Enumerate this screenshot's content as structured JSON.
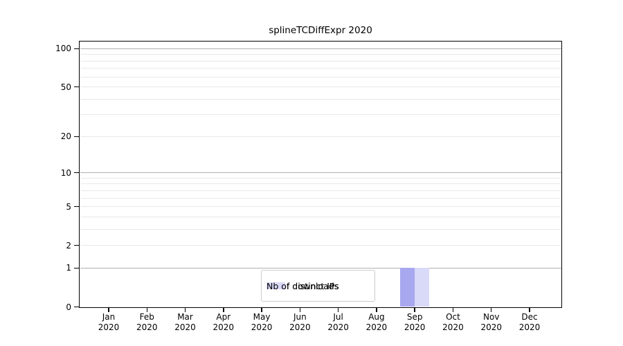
{
  "title": "splineTCDiffExpr 2020",
  "colors": {
    "background": "#ffffff",
    "spine": "#000000",
    "major_grid": "#b0b0b0",
    "minor_grid": "#e8e8e8",
    "text": "#000000",
    "legend_border": "#cccccc"
  },
  "legend": {
    "items": [
      "Nb of distinct IPs",
      "Nb of downloads"
    ]
  },
  "chart_data": {
    "type": "bar",
    "title": "splineTCDiffExpr 2020",
    "categories": [
      "Jan 2020",
      "Feb 2020",
      "Mar 2020",
      "Apr 2020",
      "May 2020",
      "Jun 2020",
      "Jul 2020",
      "Aug 2020",
      "Sep 2020",
      "Oct 2020",
      "Nov 2020",
      "Dec 2020"
    ],
    "series": [
      {
        "name": "Nb of distinct IPs",
        "color": "#a8a8f0",
        "values": [
          0,
          0,
          0,
          0,
          0,
          0,
          0,
          0,
          1,
          0,
          0,
          0
        ]
      },
      {
        "name": "Nb of downloads",
        "color": "#d9d9f8",
        "values": [
          0,
          0,
          0,
          0,
          0,
          0,
          0,
          0,
          1,
          0,
          0,
          0
        ]
      }
    ],
    "xlabel": "",
    "ylabel": "",
    "yscale": "log1p",
    "ylim": [
      0,
      113
    ],
    "yticks": [
      0,
      1,
      2,
      5,
      10,
      20,
      50,
      100
    ],
    "ytick_labels": [
      "0",
      "1",
      "2",
      "5",
      "10",
      "20",
      "50",
      "100"
    ],
    "major_gridlines": [
      1,
      10,
      100
    ],
    "minor_gridlines": [
      2,
      3,
      4,
      5,
      6,
      7,
      8,
      9,
      20,
      30,
      40,
      50,
      60,
      70,
      80,
      90
    ],
    "grid": "on",
    "legend_position": "lower center, inside axes"
  }
}
